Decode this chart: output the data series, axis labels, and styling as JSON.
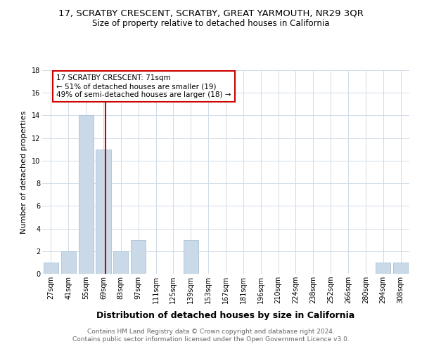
{
  "title": "17, SCRATBY CRESCENT, SCRATBY, GREAT YARMOUTH, NR29 3QR",
  "subtitle": "Size of property relative to detached houses in California",
  "xlabel": "Distribution of detached houses by size in California",
  "ylabel": "Number of detached properties",
  "footer1": "Contains HM Land Registry data © Crown copyright and database right 2024.",
  "footer2": "Contains public sector information licensed under the Open Government Licence v3.0.",
  "categories": [
    "27sqm",
    "41sqm",
    "55sqm",
    "69sqm",
    "83sqm",
    "97sqm",
    "111sqm",
    "125sqm",
    "139sqm",
    "153sqm",
    "167sqm",
    "181sqm",
    "196sqm",
    "210sqm",
    "224sqm",
    "238sqm",
    "252sqm",
    "266sqm",
    "280sqm",
    "294sqm",
    "308sqm"
  ],
  "values": [
    1,
    2,
    14,
    11,
    2,
    3,
    0,
    0,
    3,
    0,
    0,
    0,
    0,
    0,
    0,
    0,
    0,
    0,
    0,
    1,
    1
  ],
  "bar_color": "#c9d9e8",
  "bar_edge_color": "#a8c4d8",
  "grid_color": "#d0dce8",
  "red_line_color": "#cc0000",
  "annotation_text_line1": "17 SCRATBY CRESCENT: 71sqm",
  "annotation_text_line2": "← 51% of detached houses are smaller (19)",
  "annotation_text_line3": "49% of semi-detached houses are larger (18) →",
  "annotation_box_color": "#ffffff",
  "annotation_border_color": "#cc0000",
  "red_line_x": 3.14,
  "ylim": [
    0,
    18
  ],
  "yticks": [
    0,
    2,
    4,
    6,
    8,
    10,
    12,
    14,
    16,
    18
  ],
  "background_color": "#ffffff",
  "title_fontsize": 9.5,
  "subtitle_fontsize": 8.5,
  "xlabel_fontsize": 9,
  "ylabel_fontsize": 8,
  "tick_fontsize": 7,
  "annotation_fontsize": 7.5,
  "footer_fontsize": 6.5,
  "footer_color": "#666666"
}
